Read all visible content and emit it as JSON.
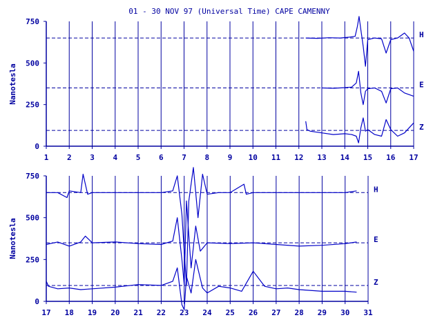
{
  "chart_data": [
    {
      "type": "line",
      "title": "01 - 30 NOV 97 (Universal Time) CAPE CAMENNY",
      "ylabel": "Nanotesla",
      "xlim": [
        1,
        17
      ],
      "ylim": [
        0,
        750
      ],
      "x_ticks": [
        "1",
        "2",
        "3",
        "4",
        "5",
        "6",
        "7",
        "8",
        "9",
        "10",
        "11",
        "12",
        "13",
        "14",
        "15",
        "16",
        "17"
      ],
      "y_ticks": [
        "0",
        "250",
        "500",
        "750"
      ],
      "reference_lines": [
        {
          "name": "H",
          "y": 650
        },
        {
          "name": "E",
          "y": 350
        },
        {
          "name": "Z",
          "y": 95
        }
      ],
      "grid": "vertical lines at each day",
      "series": [
        {
          "name": "H",
          "x": [
            12.3,
            12.8,
            13.3,
            13.8,
            14.2,
            14.45,
            14.55,
            14.62,
            14.7,
            14.8,
            14.9,
            15.0,
            15.3,
            15.6,
            15.8,
            16.0,
            16.3,
            16.6,
            16.8,
            17.0
          ],
          "y": [
            650,
            648,
            652,
            650,
            655,
            660,
            720,
            780,
            700,
            600,
            480,
            640,
            650,
            645,
            560,
            640,
            650,
            680,
            650,
            570
          ]
        },
        {
          "name": "E",
          "y_note": "",
          "x": [
            13.0,
            13.5,
            14.0,
            14.3,
            14.5,
            14.6,
            14.7,
            14.8,
            14.9,
            15.0,
            15.3,
            15.6,
            15.8,
            16.0,
            16.3,
            16.6,
            17.0
          ],
          "y": [
            350,
            348,
            352,
            355,
            380,
            450,
            320,
            250,
            330,
            345,
            350,
            330,
            260,
            345,
            350,
            320,
            300
          ]
        },
        {
          "name": "Z",
          "x": [
            12.3,
            12.35,
            12.5,
            13.0,
            13.5,
            14.0,
            14.3,
            14.5,
            14.6,
            14.7,
            14.8,
            14.9,
            15.0,
            15.3,
            15.6,
            15.8,
            16.0,
            16.3,
            16.6,
            17.0
          ],
          "y": [
            150,
            100,
            90,
            80,
            70,
            75,
            70,
            60,
            20,
            110,
            170,
            90,
            100,
            70,
            60,
            160,
            100,
            60,
            80,
            140
          ]
        }
      ]
    },
    {
      "type": "line",
      "ylabel": "Nanotesla",
      "xlim": [
        17,
        31
      ],
      "ylim": [
        0,
        750
      ],
      "x_ticks": [
        "17",
        "18",
        "19",
        "20",
        "21",
        "22",
        "23",
        "24",
        "25",
        "26",
        "27",
        "28",
        "29",
        "30",
        "31"
      ],
      "y_ticks": [
        "0",
        "250",
        "500",
        "750"
      ],
      "reference_lines": [
        {
          "name": "H",
          "y": 650
        },
        {
          "name": "E",
          "y": 350
        },
        {
          "name": "Z",
          "y": 95
        }
      ],
      "grid": "vertical lines at each day",
      "series": [
        {
          "name": "H",
          "x": [
            17.0,
            17.5,
            17.9,
            18.0,
            18.5,
            18.6,
            18.8,
            19.0,
            20.0,
            21.0,
            22.0,
            22.5,
            22.7,
            22.9,
            23.0,
            23.1,
            23.2,
            23.4,
            23.5,
            23.6,
            23.8,
            24.0,
            24.5,
            25.0,
            25.6,
            25.7,
            26.0,
            27.0,
            28.0,
            29.0,
            30.0,
            30.5
          ],
          "y": [
            650,
            650,
            620,
            660,
            650,
            760,
            640,
            650,
            650,
            650,
            650,
            660,
            750,
            520,
            300,
            100,
            600,
            800,
            650,
            500,
            760,
            640,
            650,
            650,
            700,
            640,
            650,
            650,
            650,
            650,
            650,
            660
          ]
        },
        {
          "name": "E",
          "x": [
            17.0,
            17.5,
            18.0,
            18.5,
            18.7,
            19.0,
            20.0,
            21.0,
            22.0,
            22.5,
            22.7,
            22.9,
            23.0,
            23.1,
            23.3,
            23.5,
            23.7,
            24.0,
            25.0,
            26.0,
            27.0,
            28.0,
            29.0,
            30.0,
            30.5
          ],
          "y": [
            340,
            355,
            330,
            355,
            390,
            350,
            355,
            345,
            340,
            360,
            500,
            250,
            100,
            600,
            200,
            450,
            300,
            350,
            345,
            350,
            340,
            330,
            335,
            345,
            355
          ]
        },
        {
          "name": "Z",
          "x": [
            17.0,
            17.1,
            17.5,
            18.0,
            18.5,
            19.0,
            20.0,
            21.0,
            22.0,
            22.5,
            22.7,
            22.9,
            23.0,
            23.1,
            23.3,
            23.5,
            23.8,
            24.0,
            24.5,
            25.0,
            25.5,
            26.0,
            26.5,
            27.0,
            27.5,
            28.0,
            29.0,
            30.0,
            30.5
          ],
          "y": [
            120,
            90,
            75,
            80,
            70,
            75,
            85,
            100,
            95,
            120,
            200,
            -20,
            -50,
            150,
            50,
            250,
            80,
            50,
            90,
            80,
            60,
            180,
            90,
            75,
            80,
            70,
            60,
            60,
            55
          ]
        }
      ]
    }
  ],
  "colors": {
    "trace": "#0000c8",
    "axis": "#0000a0",
    "text": "#0000a0"
  }
}
